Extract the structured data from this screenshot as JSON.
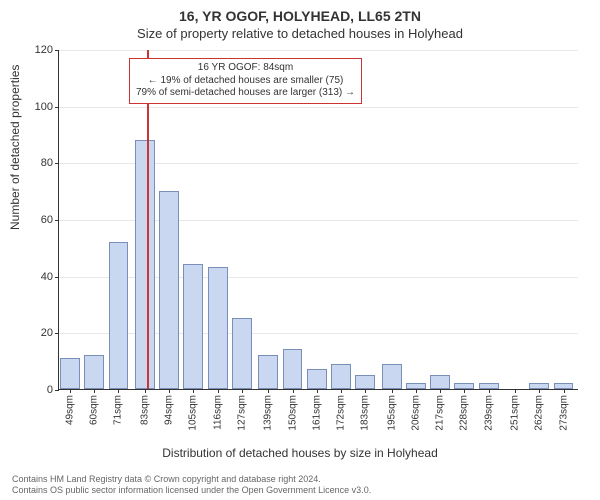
{
  "titles": {
    "main": "16, YR OGOF, HOLYHEAD, LL65 2TN",
    "sub": "Size of property relative to detached houses in Holyhead"
  },
  "axes": {
    "ylabel": "Number of detached properties",
    "xlabel": "Distribution of detached houses by size in Holyhead"
  },
  "footer": {
    "line1": "Contains HM Land Registry data © Crown copyright and database right 2024.",
    "line2": "Contains OS public sector information licensed under the Open Government Licence v3.0."
  },
  "chart": {
    "type": "bar",
    "ylim": [
      0,
      120
    ],
    "ytick_step": 20,
    "yticks": [
      0,
      20,
      40,
      60,
      80,
      100,
      120
    ],
    "bar_fill": "#c9d7f0",
    "bar_stroke": "#7a8fb8",
    "grid_color": "#e8e8e8",
    "background": "#ffffff",
    "ref_line_color": "#cc3333",
    "ref_line_x": 84,
    "xtick_labels": [
      "49sqm",
      "60sqm",
      "71sqm",
      "83sqm",
      "94sqm",
      "105sqm",
      "116sqm",
      "127sqm",
      "139sqm",
      "150sqm",
      "161sqm",
      "172sqm",
      "183sqm",
      "195sqm",
      "206sqm",
      "217sqm",
      "228sqm",
      "239sqm",
      "251sqm",
      "262sqm",
      "273sqm"
    ],
    "categories_x": [
      49,
      60,
      71,
      83,
      94,
      105,
      116,
      127,
      139,
      150,
      161,
      172,
      183,
      195,
      206,
      217,
      228,
      239,
      251,
      262,
      273
    ],
    "values": [
      11,
      12,
      52,
      88,
      70,
      44,
      43,
      25,
      12,
      14,
      7,
      9,
      5,
      9,
      2,
      5,
      2,
      2,
      0,
      2,
      2
    ],
    "bar_width": 0.82,
    "x_range": [
      44,
      280
    ]
  },
  "annotation": {
    "line1": "16 YR OGOF: 84sqm",
    "line2": "← 19% of detached houses are smaller (75)",
    "line3": "79% of semi-detached houses are larger (313) →"
  }
}
